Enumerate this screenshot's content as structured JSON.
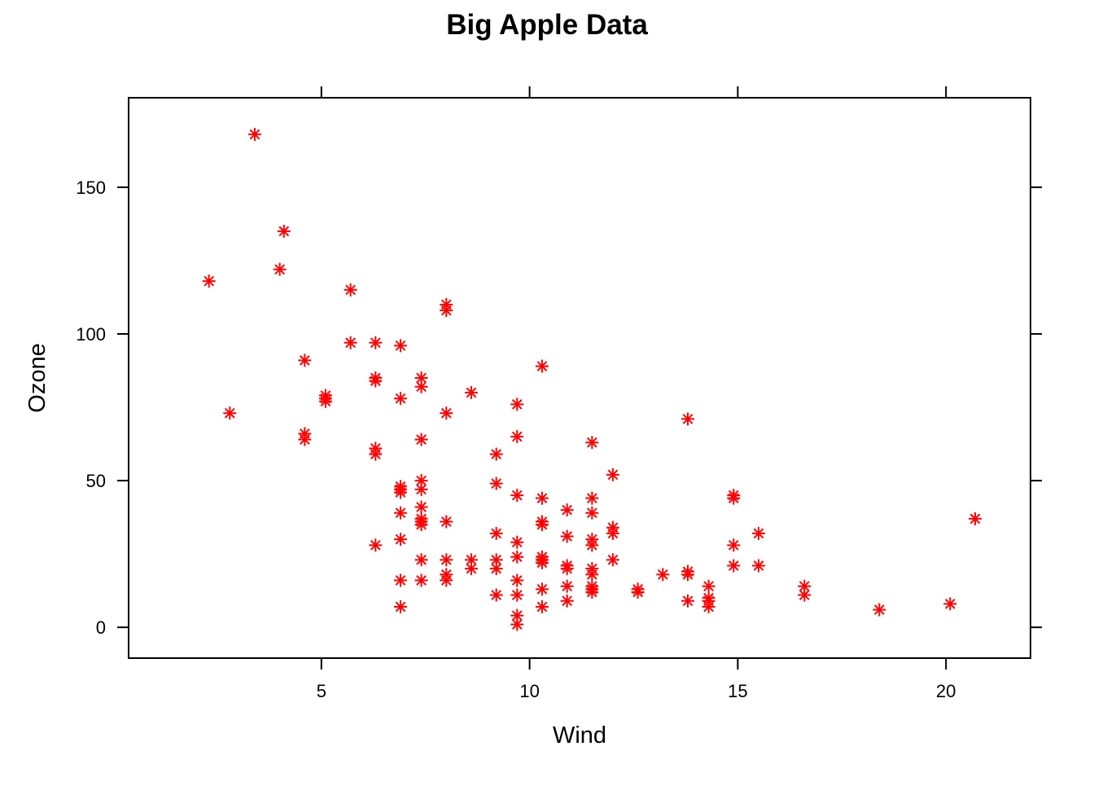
{
  "chart_data": {
    "type": "scatter",
    "title": "Big Apple Data",
    "xlabel": "Wind",
    "ylabel": "Ozone",
    "xlim": [
      0.37,
      22.03
    ],
    "ylim": [
      -10.5,
      180.5
    ],
    "xticks": [
      5,
      10,
      15,
      20
    ],
    "yticks": [
      0,
      50,
      100,
      150
    ],
    "grid": false,
    "legend": "none",
    "marker": "asterisk",
    "marker_color": "#ff0000",
    "series": [
      {
        "x": [
          2.3,
          2.8,
          3.4,
          4.0,
          4.1,
          4.6,
          4.6,
          4.6,
          5.1,
          5.1,
          5.1,
          5.7,
          5.7,
          6.3,
          6.3,
          6.3,
          6.3,
          6.3,
          6.3,
          6.9,
          6.9,
          6.9,
          6.9,
          6.9,
          6.9,
          6.9,
          6.9,
          6.9,
          7.4,
          7.4,
          7.4,
          7.4,
          7.4,
          7.4,
          7.4,
          7.4,
          7.4,
          7.4,
          7.4,
          8.0,
          8.0,
          8.0,
          8.0,
          8.0,
          8.0,
          8.0,
          8.6,
          8.6,
          8.6,
          9.2,
          9.2,
          9.2,
          9.2,
          9.2,
          9.2,
          9.7,
          9.7,
          9.7,
          9.7,
          9.7,
          9.7,
          9.7,
          9.7,
          9.7,
          10.3,
          10.3,
          10.3,
          10.3,
          10.3,
          10.3,
          10.3,
          10.3,
          10.3,
          10.9,
          10.9,
          10.9,
          10.9,
          10.9,
          10.9,
          11.5,
          11.5,
          11.5,
          11.5,
          11.5,
          11.5,
          11.5,
          11.5,
          11.5,
          11.5,
          12.0,
          12.0,
          12.0,
          12.0,
          12.6,
          12.6,
          13.2,
          13.8,
          13.8,
          13.8,
          13.8,
          14.3,
          14.3,
          14.3,
          14.3,
          14.9,
          14.9,
          14.9,
          14.9,
          15.5,
          15.5,
          16.6,
          16.6,
          18.4,
          20.1,
          20.7
        ],
        "y": [
          118,
          73,
          168,
          122,
          135,
          91,
          66,
          64,
          79,
          78,
          77,
          115,
          97,
          97,
          85,
          84,
          61,
          59,
          28,
          96,
          78,
          48,
          47,
          46,
          39,
          30,
          16,
          7,
          85,
          82,
          64,
          50,
          47,
          41,
          37,
          36,
          35,
          23,
          16,
          110,
          108,
          73,
          36,
          23,
          18,
          16,
          80,
          23,
          20,
          59,
          49,
          32,
          23,
          20,
          11,
          76,
          65,
          45,
          29,
          24,
          16,
          11,
          4,
          1,
          89,
          44,
          36,
          35,
          24,
          23,
          22,
          13,
          7,
          40,
          31,
          21,
          20,
          14,
          9,
          63,
          44,
          39,
          30,
          28,
          20,
          18,
          14,
          13,
          12,
          52,
          34,
          32,
          23,
          13,
          12,
          18,
          71,
          19,
          18,
          9,
          14,
          10,
          9,
          7,
          45,
          44,
          28,
          21,
          32,
          21,
          14,
          11,
          6,
          8,
          37
        ]
      }
    ]
  }
}
